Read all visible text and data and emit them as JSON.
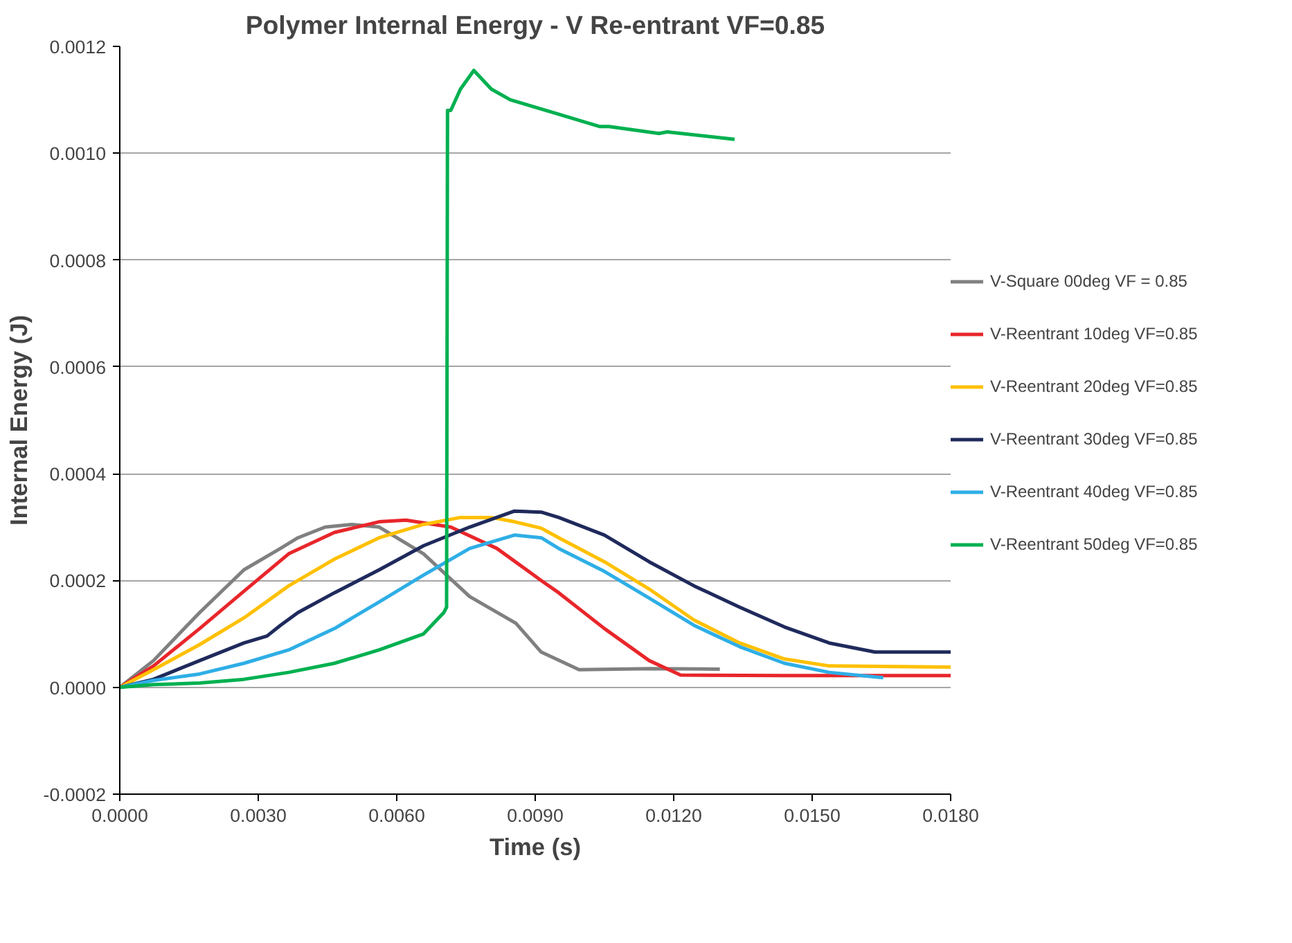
{
  "chart_data": {
    "type": "line",
    "title": "Polymer Internal Energy - V Re-entrant VF=0.85",
    "xlabel": "Time (s)",
    "ylabel": "Internal Energy (J)",
    "xlim": [
      0,
      0.018
    ],
    "ylim": [
      -0.0002,
      0.0012
    ],
    "xticks": [
      {
        "value": 0,
        "label": "0.0000"
      },
      {
        "value": 0.003,
        "label": "0.0030"
      },
      {
        "value": 0.006,
        "label": "0.0060"
      },
      {
        "value": 0.009,
        "label": "0.0090"
      },
      {
        "value": 0.012,
        "label": "0.0120"
      },
      {
        "value": 0.015,
        "label": "0.0150"
      },
      {
        "value": 0.018,
        "label": "0.0180"
      }
    ],
    "yticks": [
      {
        "value": -0.0002,
        "label": "-0.0002"
      },
      {
        "value": 0,
        "label": "0.0000"
      },
      {
        "value": 0.0002,
        "label": "0.0002"
      },
      {
        "value": 0.0004,
        "label": "0.0004"
      },
      {
        "value": 0.0006,
        "label": "0.0006"
      },
      {
        "value": 0.0008,
        "label": "0.0008"
      },
      {
        "value": 0.001,
        "label": "0.0010"
      },
      {
        "value": 0.0012,
        "label": "0.0012"
      }
    ],
    "grid": "y",
    "legend": "right",
    "marker": "none",
    "line_style": "solid",
    "series": [
      {
        "name": "V-Square 00deg VF = 0.85",
        "color": "#808080",
        "x": [
          0,
          0.00073,
          0.00173,
          0.00269,
          0.00348,
          0.00386,
          0.00445,
          0.00503,
          0.00562,
          0.00658,
          0.00758,
          0.00858,
          0.00913,
          0.00995,
          0.0115,
          0.013
        ],
        "values": [
          0,
          5e-05,
          0.00014,
          0.00022,
          0.00026,
          0.00028,
          0.0003,
          0.000305,
          0.0003,
          0.00025,
          0.00017,
          0.00012,
          6.6e-05,
          3.3e-05,
          3.5e-05,
          3.4e-05
        ]
      },
      {
        "name": "V-Reentrant 10deg VF=0.85",
        "color": "#e8262b",
        "x": [
          0,
          0.00073,
          0.00173,
          0.00269,
          0.00366,
          0.00465,
          0.00562,
          0.0062,
          0.00717,
          0.00817,
          0.00913,
          0.00951,
          0.0105,
          0.01147,
          0.01215,
          0.0144,
          0.018
        ],
        "values": [
          0,
          4e-05,
          0.00011,
          0.00018,
          0.00025,
          0.00029,
          0.00031,
          0.000313,
          0.0003,
          0.00026,
          0.0002,
          0.000177,
          0.00011,
          5e-05,
          2.3e-05,
          2.2e-05,
          2.2e-05
        ]
      },
      {
        "name": "V-Reentrant 20deg VF=0.85",
        "color": "#ffc000",
        "x": [
          0,
          0.00073,
          0.00173,
          0.00269,
          0.00366,
          0.00465,
          0.00562,
          0.00658,
          0.00738,
          0.00805,
          0.00855,
          0.00913,
          0.00951,
          0.0105,
          0.01147,
          0.01244,
          0.01343,
          0.0144,
          0.01537,
          0.018
        ],
        "values": [
          0,
          3.3e-05,
          8e-05,
          0.00013,
          0.00019,
          0.00024,
          0.00028,
          0.000305,
          0.000318,
          0.000318,
          0.00031,
          0.000298,
          0.00028,
          0.000235,
          0.000184,
          0.000126,
          8.3e-05,
          5.3e-05,
          4e-05,
          3.8e-05
        ]
      },
      {
        "name": "V-Reentrant 30deg VF=0.85",
        "color": "#1f2a5c",
        "x": [
          0,
          0.00073,
          0.00173,
          0.00269,
          0.00319,
          0.00348,
          0.00386,
          0.00465,
          0.00562,
          0.00658,
          0.00758,
          0.00855,
          0.00913,
          0.00951,
          0.0105,
          0.01147,
          0.01244,
          0.01343,
          0.0144,
          0.01537,
          0.01636,
          0.018
        ],
        "values": [
          0,
          1.5e-05,
          5e-05,
          8.3e-05,
          9.6e-05,
          0.000116,
          0.00014,
          0.000177,
          0.00022,
          0.000265,
          0.0003,
          0.00033,
          0.000328,
          0.000318,
          0.000285,
          0.000235,
          0.00019,
          0.00015,
          0.000113,
          8.3e-05,
          6.6e-05,
          6.6e-05
        ]
      },
      {
        "name": "V-Reentrant 40deg VF=0.85",
        "color": "#2eaee6",
        "x": [
          0,
          0.00073,
          0.00173,
          0.00269,
          0.00366,
          0.00465,
          0.00562,
          0.00658,
          0.00758,
          0.00855,
          0.00913,
          0.00951,
          0.0105,
          0.01147,
          0.01244,
          0.01343,
          0.0144,
          0.01537,
          0.01654
        ],
        "values": [
          0,
          1.3e-05,
          2.5e-05,
          4.5e-05,
          7e-05,
          0.00011,
          0.00016,
          0.00021,
          0.00026,
          0.000285,
          0.00028,
          0.00026,
          0.000217,
          0.000167,
          0.000116,
          7.6e-05,
          4.5e-05,
          2.8e-05,
          1.8e-05
        ]
      },
      {
        "name": "V-Reentrant 50deg VF=0.85",
        "color": "#00b050",
        "x": [
          0,
          0.00073,
          0.00173,
          0.00269,
          0.00366,
          0.00465,
          0.00562,
          0.00658,
          0.00702,
          0.00708,
          0.0071,
          0.00717,
          0.00738,
          0.00767,
          0.00805,
          0.00846,
          0.00943,
          0.01039,
          0.0106,
          0.01168,
          0.01186,
          0.01332
        ],
        "values": [
          0,
          5e-06,
          8e-06,
          1.5e-05,
          2.8e-05,
          4.5e-05,
          7e-05,
          0.0001,
          0.00014,
          0.00015,
          0.00108,
          0.00108,
          0.00112,
          0.001155,
          0.00112,
          0.0011,
          0.001075,
          0.00105,
          0.00105,
          0.001037,
          0.00104,
          0.001026
        ]
      }
    ]
  }
}
